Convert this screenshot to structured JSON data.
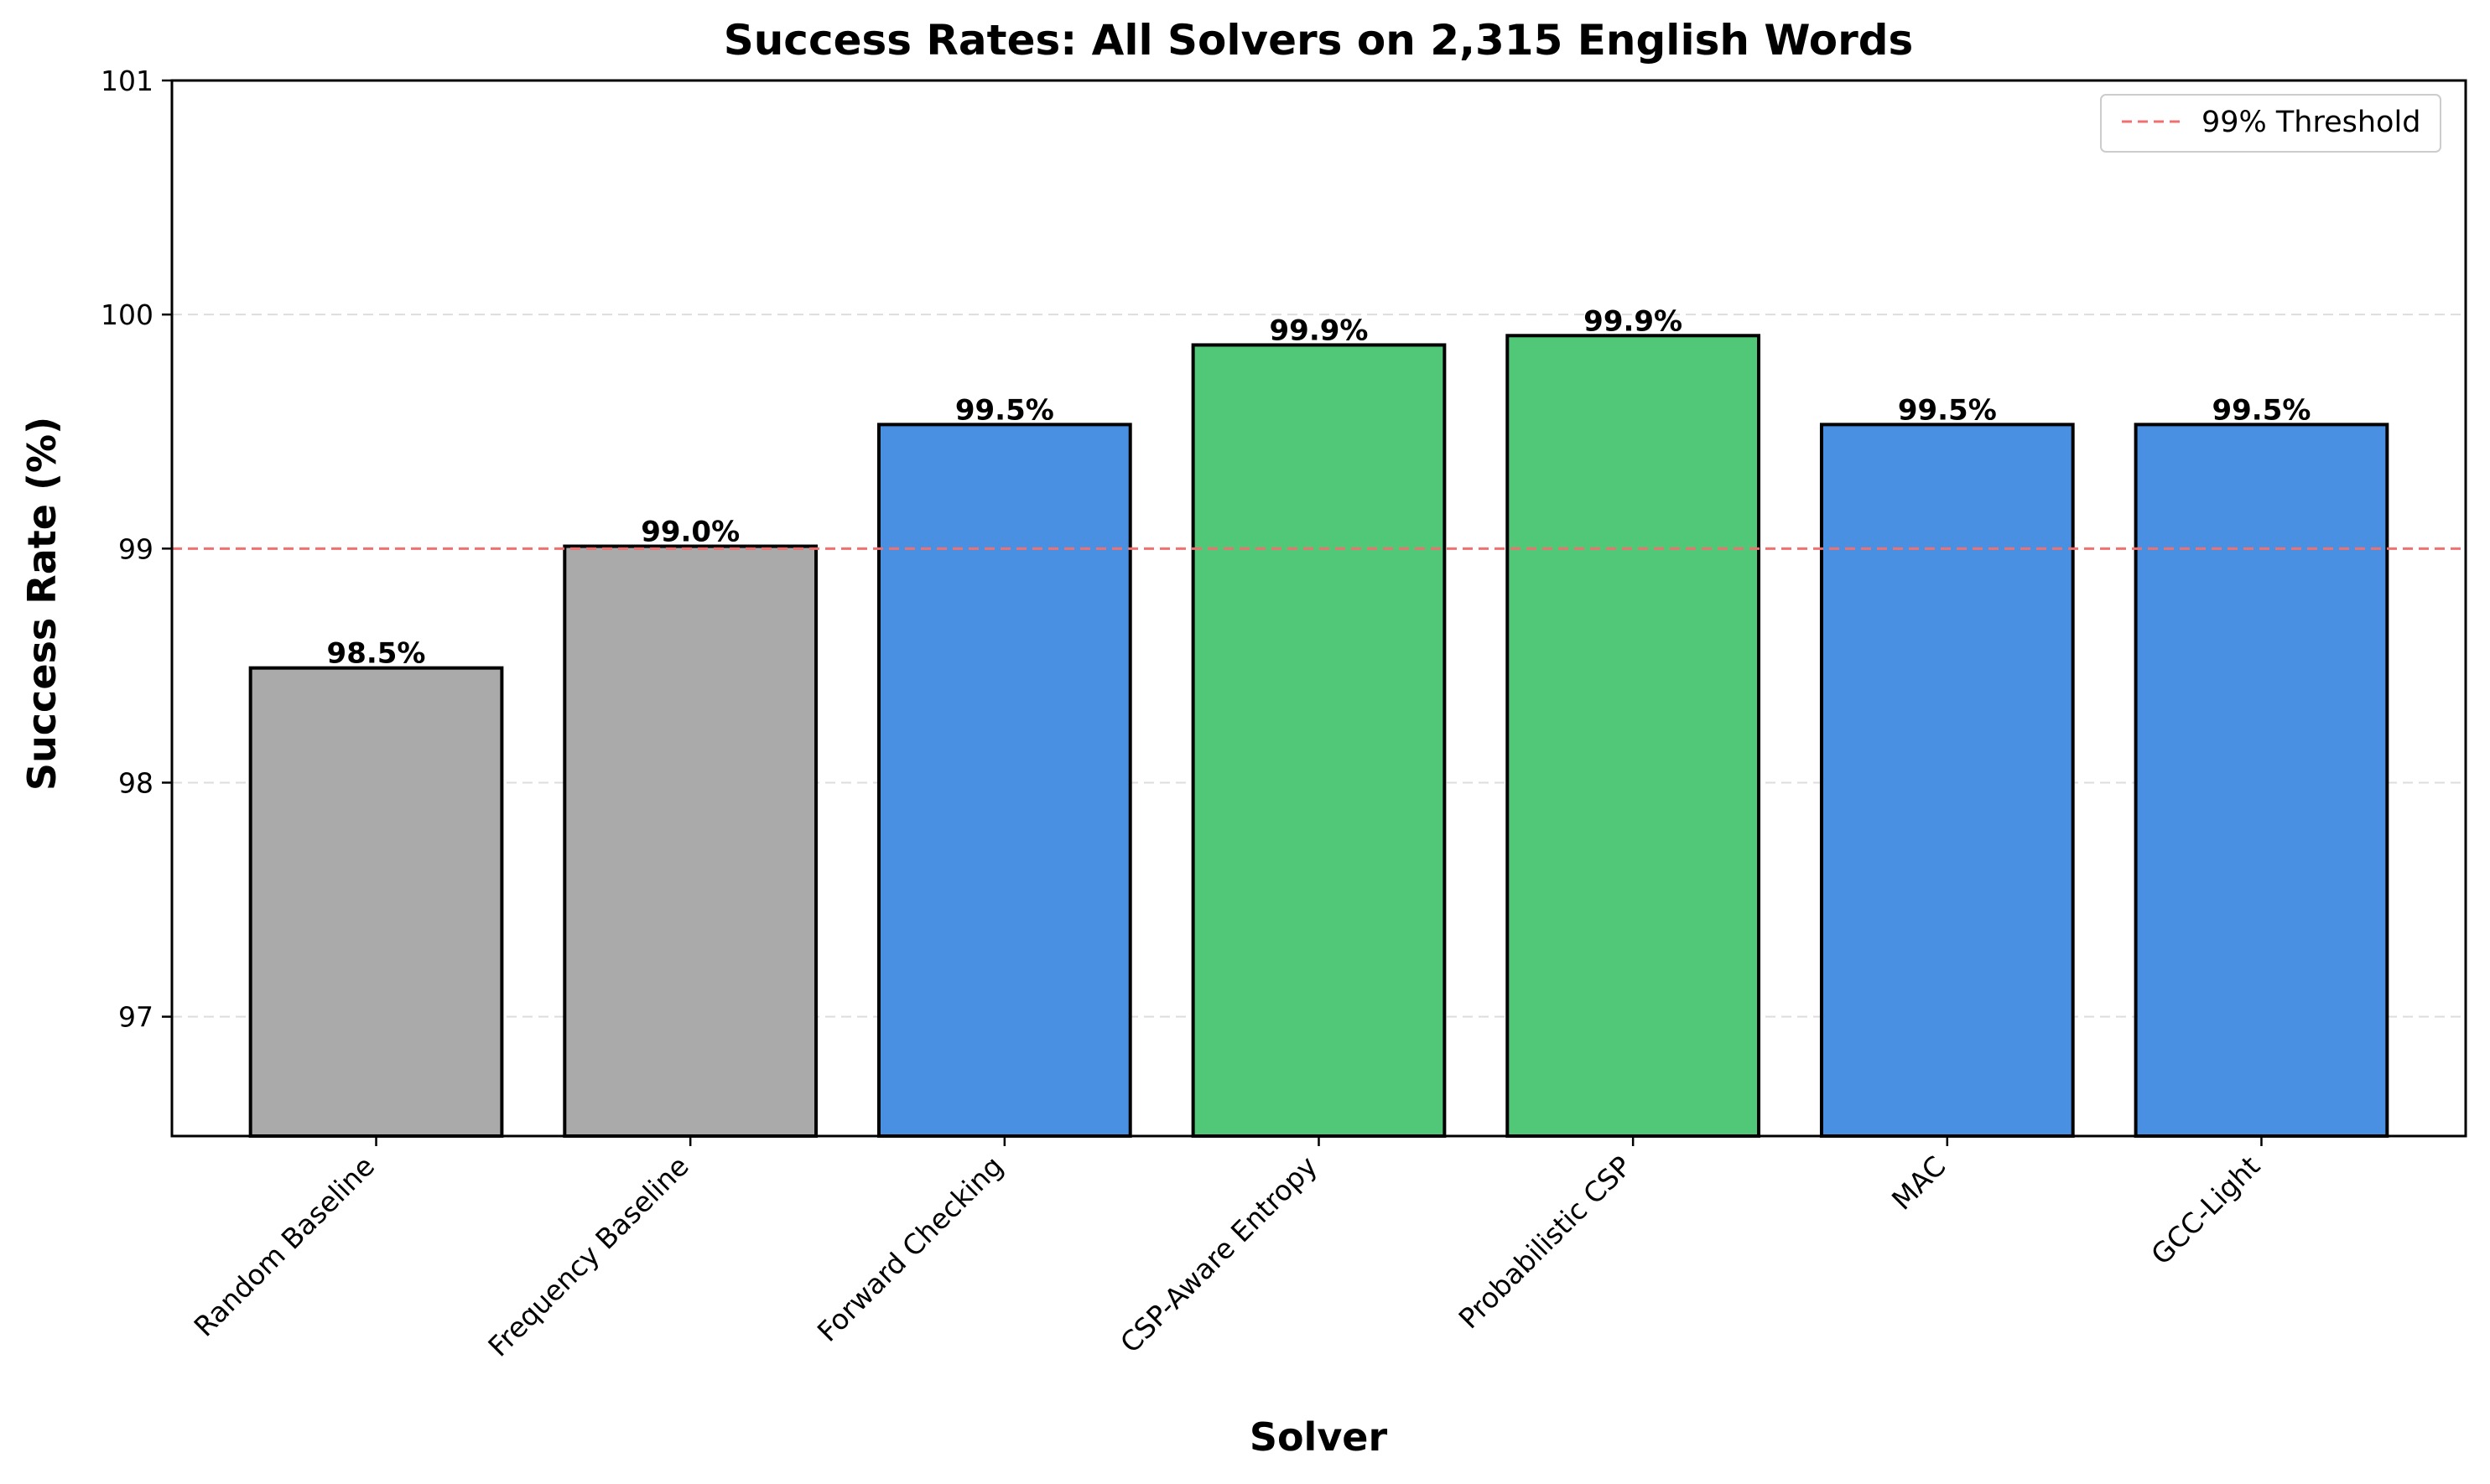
{
  "chart_data": {
    "type": "bar",
    "title": "Success Rates: All Solvers on 2,315 English Words",
    "xlabel": "Solver",
    "ylabel": "Success Rate (%)",
    "categories": [
      "Random Baseline",
      "Frequency Baseline",
      "Forward Checking",
      "CSP-Aware Entropy",
      "Probabilistic CSP",
      "MAC",
      "GCC-Light"
    ],
    "values": [
      98.49,
      99.01,
      99.53,
      99.87,
      99.91,
      99.53,
      99.53
    ],
    "data_labels": [
      "98.5%",
      "99.0%",
      "99.5%",
      "99.9%",
      "99.9%",
      "99.5%",
      "99.5%"
    ],
    "bar_colors": [
      "#aaaaaa",
      "#aaaaaa",
      "#4a90e2",
      "#50c878",
      "#50c878",
      "#4a90e2",
      "#4a90e2"
    ],
    "ylim": [
      96.49,
      101
    ],
    "yticks": [
      97,
      98,
      99,
      100,
      101
    ],
    "ytick_labels": [
      "97",
      "98",
      "99",
      "100",
      "101"
    ],
    "grid": "y-dashed",
    "threshold": {
      "value": 99,
      "label": "99% Threshold",
      "color": "#f07070"
    },
    "legend": {
      "placement": "top-right",
      "entries": [
        "99% Threshold"
      ]
    }
  }
}
